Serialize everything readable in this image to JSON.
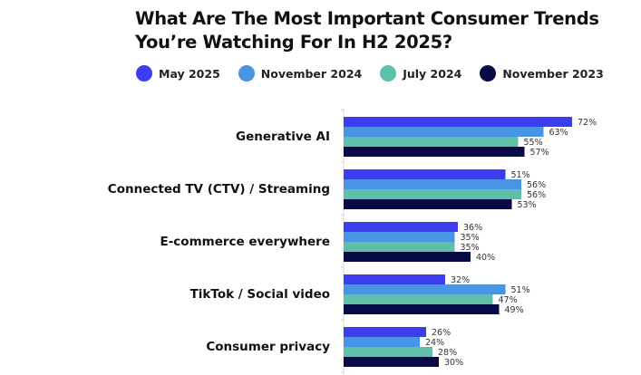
{
  "chart_data": {
    "type": "bar",
    "orientation": "horizontal",
    "title": "What Are The Most Important Consumer Trends You’re Watching For In H2 2025?",
    "xlabel": "",
    "ylabel": "",
    "xlim": [
      0,
      75
    ],
    "grid": false,
    "legend_position": "top",
    "value_suffix": "%",
    "categories": [
      "Generative AI",
      "Connected TV (CTV) / Streaming",
      "E-commerce everywhere",
      "TikTok / Social video",
      "Consumer privacy"
    ],
    "series": [
      {
        "name": "May 2025",
        "color": "#3d3df0",
        "values": [
          72,
          51,
          36,
          32,
          26
        ]
      },
      {
        "name": "November 2024",
        "color": "#4a94e6",
        "values": [
          63,
          56,
          35,
          51,
          24
        ]
      },
      {
        "name": "July 2024",
        "color": "#5ec0a8",
        "values": [
          55,
          56,
          35,
          47,
          28
        ]
      },
      {
        "name": "November 2023",
        "color": "#060a45",
        "values": [
          57,
          53,
          40,
          49,
          30
        ]
      }
    ]
  }
}
